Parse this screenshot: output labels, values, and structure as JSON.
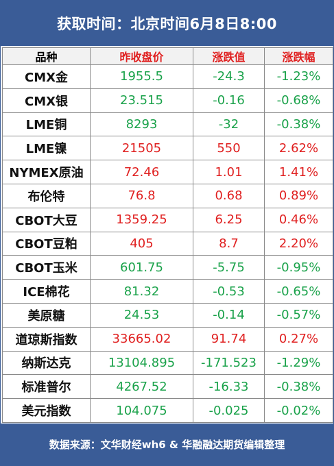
{
  "header": {
    "title": "获取时间：北京时间6月8日8:00"
  },
  "table": {
    "columns": [
      "品种",
      "昨收盘价",
      "涨跌值",
      "涨跌幅"
    ],
    "rows": [
      {
        "name": "CMX金",
        "prev_close": "1955.5",
        "change": "-24.3",
        "change_pct": "-1.23%",
        "direction": "down"
      },
      {
        "name": "CMX银",
        "prev_close": "23.515",
        "change": "-0.16",
        "change_pct": "-0.68%",
        "direction": "down"
      },
      {
        "name": "LME铜",
        "prev_close": "8293",
        "change": "-32",
        "change_pct": "-0.38%",
        "direction": "down"
      },
      {
        "name": "LME镍",
        "prev_close": "21505",
        "change": "550",
        "change_pct": "2.62%",
        "direction": "up"
      },
      {
        "name": "NYMEX原油",
        "prev_close": "72.46",
        "change": "1.01",
        "change_pct": "1.41%",
        "direction": "up"
      },
      {
        "name": "布伦特",
        "prev_close": "76.8",
        "change": "0.68",
        "change_pct": "0.89%",
        "direction": "up"
      },
      {
        "name": "CBOT大豆",
        "prev_close": "1359.25",
        "change": "6.25",
        "change_pct": "0.46%",
        "direction": "up"
      },
      {
        "name": "CBOT豆粕",
        "prev_close": "405",
        "change": "8.7",
        "change_pct": "2.20%",
        "direction": "up"
      },
      {
        "name": "CBOT玉米",
        "prev_close": "601.75",
        "change": "-5.75",
        "change_pct": "-0.95%",
        "direction": "down"
      },
      {
        "name": "ICE棉花",
        "prev_close": "81.32",
        "change": "-0.53",
        "change_pct": "-0.65%",
        "direction": "down"
      },
      {
        "name": "美原糖",
        "prev_close": "24.53",
        "change": "-0.14",
        "change_pct": "-0.57%",
        "direction": "down"
      },
      {
        "name": "道琼斯指数",
        "prev_close": "33665.02",
        "change": "91.74",
        "change_pct": "0.27%",
        "direction": "up"
      },
      {
        "name": "纳斯达克",
        "prev_close": "13104.895",
        "change": "-171.523",
        "change_pct": "-1.29%",
        "direction": "down"
      },
      {
        "name": "标准普尔",
        "prev_close": "4267.52",
        "change": "-16.33",
        "change_pct": "-0.38%",
        "direction": "down"
      },
      {
        "name": "美元指数",
        "prev_close": "104.075",
        "change": "-0.025",
        "change_pct": "-0.02%",
        "direction": "down"
      }
    ]
  },
  "colors": {
    "up": "#e02020",
    "down": "#1aa24a",
    "brand": "#3a5c97"
  },
  "footer": {
    "text": "数据来源：文华财经wh6 & 华融融达期货编辑整理"
  }
}
